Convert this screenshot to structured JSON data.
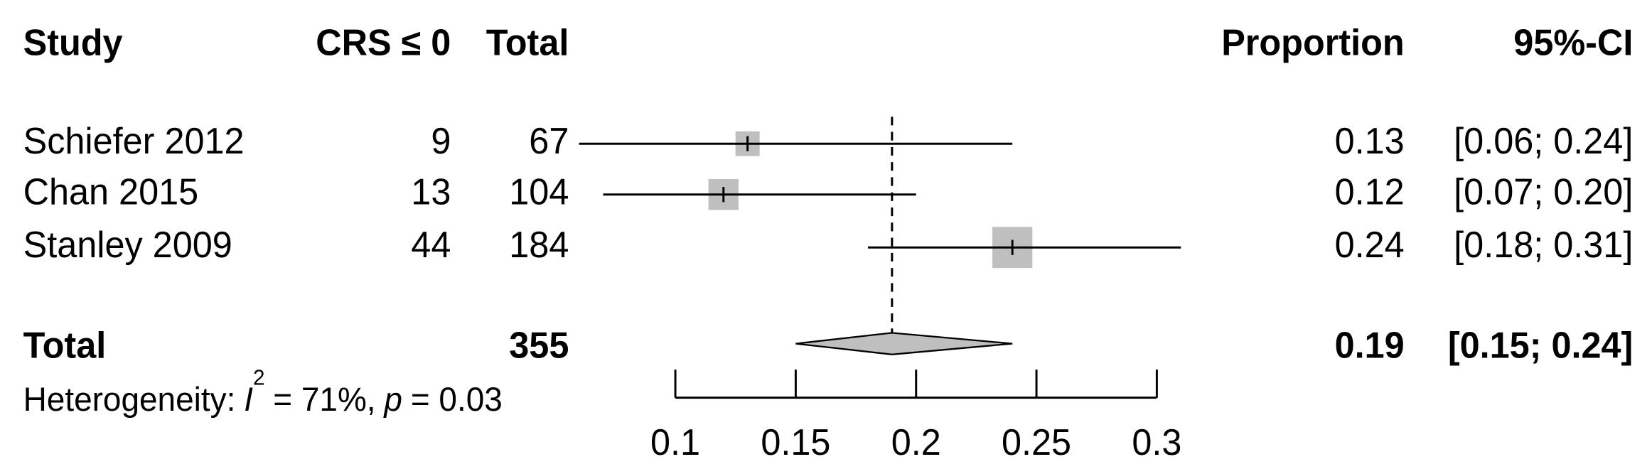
{
  "chart_data": {
    "type": "forest",
    "columns": {
      "study": "Study",
      "events": "CRS ≤ 0",
      "total": "Total",
      "proportion": "Proportion",
      "ci": "95%-CI"
    },
    "studies": [
      {
        "name": "Schiefer 2012",
        "events": 9,
        "total": 67,
        "proportion": 0.13,
        "ci": [
          0.06,
          0.24
        ],
        "ci_label": "[0.06; 0.24]"
      },
      {
        "name": "Chan 2015",
        "events": 13,
        "total": 104,
        "proportion": 0.12,
        "ci": [
          0.07,
          0.2
        ],
        "ci_label": "[0.07; 0.20]"
      },
      {
        "name": "Stanley 2009",
        "events": 44,
        "total": 184,
        "proportion": 0.24,
        "ci": [
          0.18,
          0.31
        ],
        "ci_label": "[0.18; 0.31]"
      }
    ],
    "overall": {
      "name": "Total",
      "total": 355,
      "proportion": 0.19,
      "ci": [
        0.15,
        0.24
      ],
      "ci_label": "[0.15; 0.24]"
    },
    "heterogeneity": {
      "label": "Heterogeneity:",
      "i2_symbol": "I",
      "i2_sup": "2",
      "i2_text": "= 71%,",
      "p_symbol": "p",
      "p_text": "= 0.03"
    },
    "xlim": [
      0.1,
      0.3
    ],
    "xticks": [
      0.1,
      0.15,
      0.2,
      0.25,
      0.3
    ],
    "square_color": "#bfbfbf",
    "diamond_color": "#bfbfbf"
  }
}
